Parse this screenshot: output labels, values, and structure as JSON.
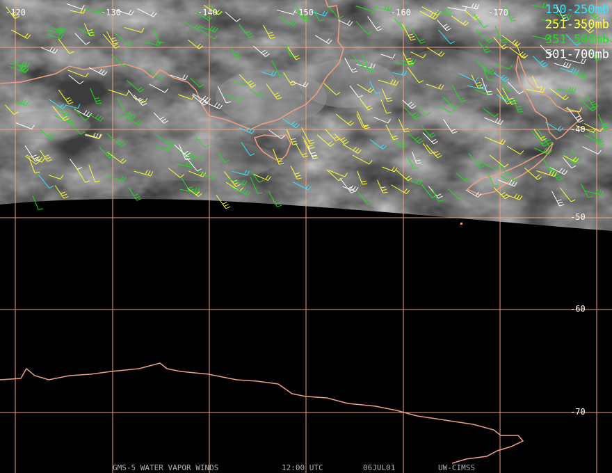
{
  "map": {
    "longitude_labels": [
      "-120",
      "-130",
      "-140",
      "-150",
      "-160",
      "-170"
    ],
    "latitude_labels": [
      "-40",
      "-50",
      "-60",
      "-70"
    ],
    "legend": [
      {
        "label": "150-250mb",
        "color": "#33e6ff"
      },
      {
        "label": "251-350mb",
        "color": "#ffff33"
      },
      {
        "label": "351-500mb",
        "color": "#22dd22"
      },
      {
        "label": "501-700mb",
        "color": "#ffffff"
      }
    ],
    "footer": [
      "GMS-5 WATER VAPOR WINDS",
      "12:00 UTC",
      "06JUL01",
      "UW-CIMSS"
    ]
  }
}
